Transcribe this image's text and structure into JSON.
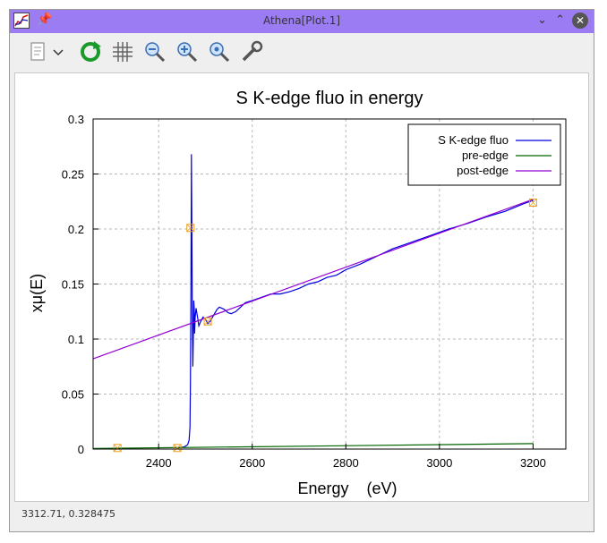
{
  "window": {
    "title": "Athena[Plot.1]",
    "status_text": "3312.71, 0.328475"
  },
  "toolbar": {
    "icons": [
      "page-setup-icon",
      "dropdown-icon",
      "refresh-icon",
      "grid-icon",
      "zoom-out-icon",
      "zoom-in-icon",
      "zoom-reset-icon",
      "settings-wrench-icon"
    ]
  },
  "colors": {
    "titlebar": "#9c7cf3",
    "data": "#0000e0",
    "pre_edge": "#006400",
    "post_edge": "#9400d3",
    "marker": "#f0a020"
  },
  "chart_data": {
    "type": "line",
    "title": "S K-edge fluo in energy",
    "xlabel": "Energy    (eV)",
    "ylabel": "xμ(E)",
    "xlim": [
      2260,
      3270
    ],
    "ylim": [
      0,
      0.3
    ],
    "xticks": [
      2400,
      2600,
      2800,
      3000,
      3200
    ],
    "yticks": [
      0,
      0.05,
      0.1,
      0.15,
      0.2,
      0.25,
      0.3
    ],
    "ytick_labels": [
      "0",
      "0.05",
      "0.1",
      "0.15",
      "0.2",
      "0.25",
      "0.3"
    ],
    "grid": true,
    "legend_position": "top-right",
    "series": [
      {
        "name": "S K-edge fluo",
        "color": "#0000e0",
        "x": [
          2440,
          2455,
          2462,
          2465,
          2467,
          2468,
          2469,
          2470,
          2471,
          2472,
          2473,
          2474,
          2475,
          2476,
          2477,
          2478,
          2480,
          2483,
          2486,
          2490,
          2495,
          2500,
          2505,
          2510,
          2518,
          2525,
          2530,
          2540,
          2548,
          2555,
          2565,
          2575,
          2585,
          2600,
          2620,
          2640,
          2660,
          2680,
          2700,
          2720,
          2740,
          2760,
          2780,
          2800,
          2830,
          2860,
          2900,
          2940,
          2980,
          3020,
          3060,
          3100,
          3140,
          3180,
          3200
        ],
        "y": [
          0.001,
          0.002,
          0.004,
          0.008,
          0.02,
          0.06,
          0.15,
          0.268,
          0.2,
          0.12,
          0.075,
          0.1,
          0.135,
          0.128,
          0.105,
          0.12,
          0.128,
          0.12,
          0.112,
          0.116,
          0.12,
          0.118,
          0.114,
          0.116,
          0.122,
          0.127,
          0.129,
          0.127,
          0.124,
          0.123,
          0.125,
          0.129,
          0.133,
          0.135,
          0.138,
          0.141,
          0.141,
          0.143,
          0.146,
          0.15,
          0.152,
          0.156,
          0.158,
          0.163,
          0.168,
          0.174,
          0.182,
          0.188,
          0.194,
          0.2,
          0.205,
          0.211,
          0.216,
          0.223,
          0.226
        ]
      },
      {
        "name": "pre-edge",
        "color": "#006400",
        "x": [
          2260,
          3200
        ],
        "y": [
          0.0005,
          0.005
        ]
      },
      {
        "name": "post-edge",
        "color": "#9400d3",
        "x": [
          2260,
          3200
        ],
        "y": [
          0.082,
          0.227
        ]
      }
    ],
    "markers": {
      "x": [
        2312,
        2440,
        2468,
        2505,
        3200
      ],
      "y": [
        0.001,
        0.001,
        0.201,
        0.116,
        0.224
      ]
    }
  }
}
